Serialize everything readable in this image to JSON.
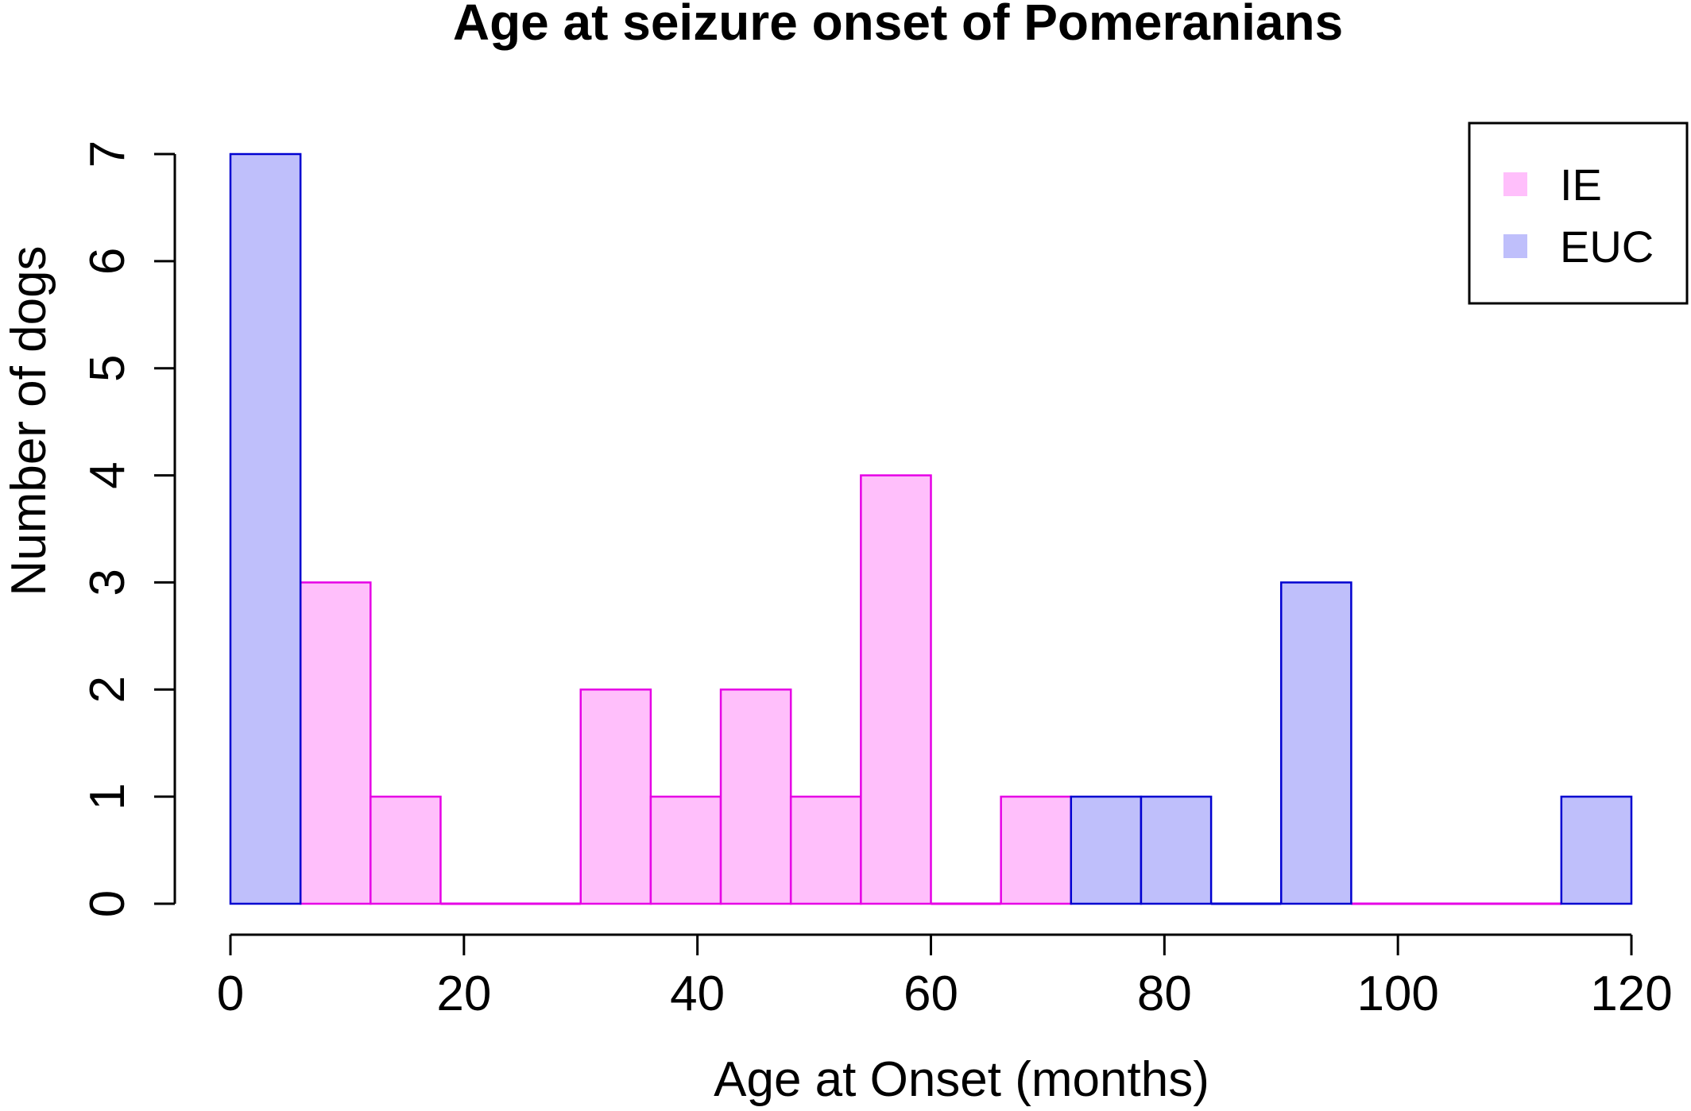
{
  "chart_data": {
    "type": "bar",
    "title": "Age at seizure onset of Pomeranians",
    "xlabel": "Age at Onset (months)",
    "ylabel": "Number of dogs",
    "xlim": [
      0,
      120
    ],
    "ylim": [
      0,
      7
    ],
    "x_ticks": [
      "0",
      "20",
      "40",
      "60",
      "80",
      "100",
      "120"
    ],
    "y_ticks": [
      "0",
      "1",
      "2",
      "3",
      "4",
      "5",
      "6",
      "7"
    ],
    "grid": false,
    "legend_position": "top-right",
    "series": [
      {
        "name": "IE",
        "fill": "#ffbffb",
        "stroke": "#e600e6",
        "bins": [
          {
            "x0": 6,
            "x1": 12,
            "count": 3
          },
          {
            "x0": 12,
            "x1": 18,
            "count": 1
          },
          {
            "x0": 30,
            "x1": 36,
            "count": 2
          },
          {
            "x0": 36,
            "x1": 42,
            "count": 1
          },
          {
            "x0": 42,
            "x1": 48,
            "count": 2
          },
          {
            "x0": 48,
            "x1": 54,
            "count": 1
          },
          {
            "x0": 54,
            "x1": 60,
            "count": 4
          },
          {
            "x0": 66,
            "x1": 72,
            "count": 1
          }
        ],
        "baseline_segments": [
          [
            18,
            30
          ],
          [
            60,
            66
          ]
        ]
      },
      {
        "name": "EUC",
        "fill": "#bfbffb",
        "stroke": "#0000d0",
        "bins": [
          {
            "x0": 0,
            "x1": 6,
            "count": 7
          },
          {
            "x0": 72,
            "x1": 78,
            "count": 1
          },
          {
            "x0": 78,
            "x1": 84,
            "count": 1
          },
          {
            "x0": 90,
            "x1": 96,
            "count": 3
          },
          {
            "x0": 114,
            "x1": 120,
            "count": 1
          }
        ],
        "baseline_segments": [
          [
            84,
            90
          ]
        ]
      }
    ],
    "baseline_pink_segments": [
      [
        96,
        114
      ]
    ]
  }
}
